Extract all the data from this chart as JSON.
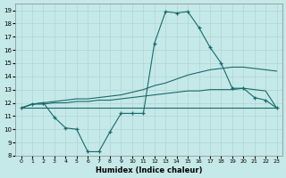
{
  "xlabel": "Humidex (Indice chaleur)",
  "xlim": [
    -0.5,
    23.5
  ],
  "ylim": [
    8,
    19.5
  ],
  "xticks": [
    0,
    1,
    2,
    3,
    4,
    5,
    6,
    7,
    8,
    9,
    10,
    11,
    12,
    13,
    14,
    15,
    16,
    17,
    18,
    19,
    20,
    21,
    22,
    23
  ],
  "yticks": [
    8,
    9,
    10,
    11,
    12,
    13,
    14,
    15,
    16,
    17,
    18,
    19
  ],
  "bg_color": "#c5e8e8",
  "grid_color": "#b0d5d5",
  "line_color": "#1a6b6b",
  "line_upper_x": [
    0,
    1,
    2,
    3,
    4,
    5,
    6,
    7,
    8,
    9,
    10,
    11,
    12,
    13,
    14,
    15,
    16,
    17,
    18,
    19,
    20,
    21,
    22,
    23
  ],
  "line_upper_y": [
    11.6,
    11.9,
    12.0,
    12.1,
    12.2,
    12.3,
    12.3,
    12.4,
    12.5,
    12.6,
    12.8,
    13.0,
    13.3,
    13.5,
    13.8,
    14.1,
    14.3,
    14.5,
    14.6,
    14.7,
    14.7,
    14.6,
    14.5,
    14.4
  ],
  "line_mid_x": [
    0,
    1,
    2,
    3,
    4,
    5,
    6,
    7,
    8,
    9,
    10,
    11,
    12,
    13,
    14,
    15,
    16,
    17,
    18,
    19,
    20,
    21,
    22,
    23
  ],
  "line_mid_y": [
    11.6,
    11.9,
    11.9,
    12.0,
    12.0,
    12.1,
    12.1,
    12.2,
    12.2,
    12.3,
    12.4,
    12.5,
    12.6,
    12.7,
    12.8,
    12.9,
    12.9,
    13.0,
    13.0,
    13.0,
    13.1,
    13.0,
    12.9,
    11.6
  ],
  "line_flat_x": [
    0,
    1,
    2,
    3,
    4,
    5,
    6,
    7,
    8,
    9,
    10,
    11,
    12,
    13,
    14,
    15,
    16,
    17,
    18,
    19,
    20,
    21,
    22,
    23
  ],
  "line_flat_y": [
    11.6,
    11.6,
    11.6,
    11.6,
    11.6,
    11.6,
    11.6,
    11.6,
    11.6,
    11.6,
    11.6,
    11.6,
    11.6,
    11.6,
    11.6,
    11.6,
    11.6,
    11.6,
    11.6,
    11.6,
    11.6,
    11.6,
    11.6,
    11.6
  ],
  "line_peak_x": [
    0,
    1,
    2,
    3,
    4,
    5,
    6,
    7,
    8,
    9,
    10,
    11,
    12,
    13,
    14,
    15,
    16,
    17,
    18,
    19,
    20,
    21,
    22,
    23
  ],
  "line_peak_y": [
    11.6,
    11.9,
    12.0,
    10.9,
    10.1,
    10.0,
    8.3,
    8.3,
    9.8,
    11.2,
    11.2,
    11.2,
    16.5,
    18.9,
    18.8,
    18.9,
    17.7,
    16.2,
    15.0,
    13.1,
    13.1,
    12.4,
    12.2,
    11.6
  ]
}
